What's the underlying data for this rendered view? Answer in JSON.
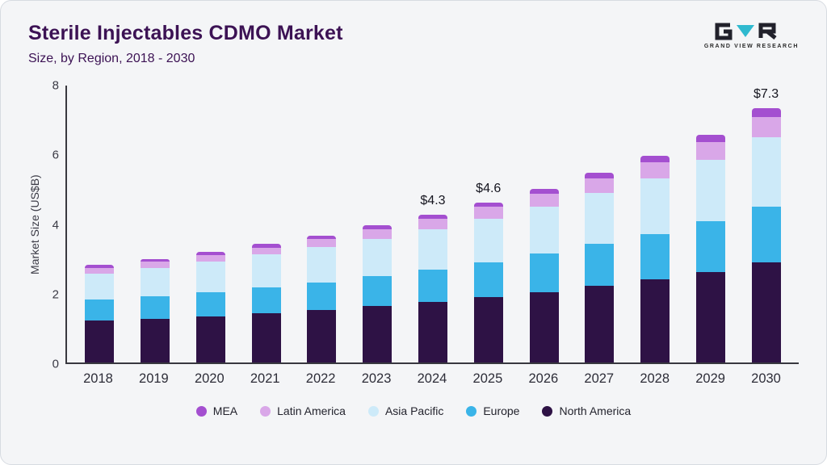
{
  "header": {
    "title": "Sterile Injectables CDMO Market",
    "subtitle": "Size, by Region, 2018 - 2030",
    "logo_text": "GRAND VIEW RESEARCH"
  },
  "chart_data": {
    "type": "bar",
    "stacked": true,
    "title": "Sterile Injectables CDMO Market Size, by Region, 2018 - 2030",
    "xlabel": "",
    "ylabel": "Market Size (US$B)",
    "ylim": [
      0,
      8
    ],
    "yticks": [
      0,
      2,
      4,
      6,
      8
    ],
    "grid": false,
    "legend_position": "bottom",
    "categories": [
      "2018",
      "2019",
      "2020",
      "2021",
      "2022",
      "2023",
      "2024",
      "2025",
      "2026",
      "2027",
      "2028",
      "2029",
      "2030"
    ],
    "series": [
      {
        "name": "North America",
        "color": "#2e1245",
        "values": [
          1.2,
          1.25,
          1.33,
          1.42,
          1.5,
          1.62,
          1.75,
          1.88,
          2.03,
          2.2,
          2.38,
          2.6,
          2.88
        ]
      },
      {
        "name": "Europe",
        "color": "#3ab4e8",
        "values": [
          0.6,
          0.65,
          0.68,
          0.73,
          0.8,
          0.85,
          0.92,
          1.0,
          1.1,
          1.2,
          1.32,
          1.45,
          1.6
        ]
      },
      {
        "name": "Asia Pacific",
        "color": "#cdeaf9",
        "values": [
          0.76,
          0.82,
          0.9,
          0.95,
          1.02,
          1.08,
          1.15,
          1.25,
          1.35,
          1.47,
          1.6,
          1.77,
          2.0
        ]
      },
      {
        "name": "Latin America",
        "color": "#d9a7e8",
        "values": [
          0.16,
          0.17,
          0.18,
          0.2,
          0.22,
          0.28,
          0.31,
          0.35,
          0.38,
          0.42,
          0.46,
          0.52,
          0.57
        ]
      },
      {
        "name": "MEA",
        "color": "#a44fd0",
        "values": [
          0.08,
          0.08,
          0.09,
          0.1,
          0.11,
          0.12,
          0.12,
          0.12,
          0.14,
          0.16,
          0.19,
          0.21,
          0.25
        ]
      }
    ],
    "annotations": [
      {
        "category": "2024",
        "text": "$4.3"
      },
      {
        "category": "2025",
        "text": "$4.6"
      },
      {
        "category": "2030",
        "text": "$7.3"
      }
    ],
    "legend_order": [
      "MEA",
      "Latin America",
      "Asia Pacific",
      "Europe",
      "North America"
    ]
  }
}
